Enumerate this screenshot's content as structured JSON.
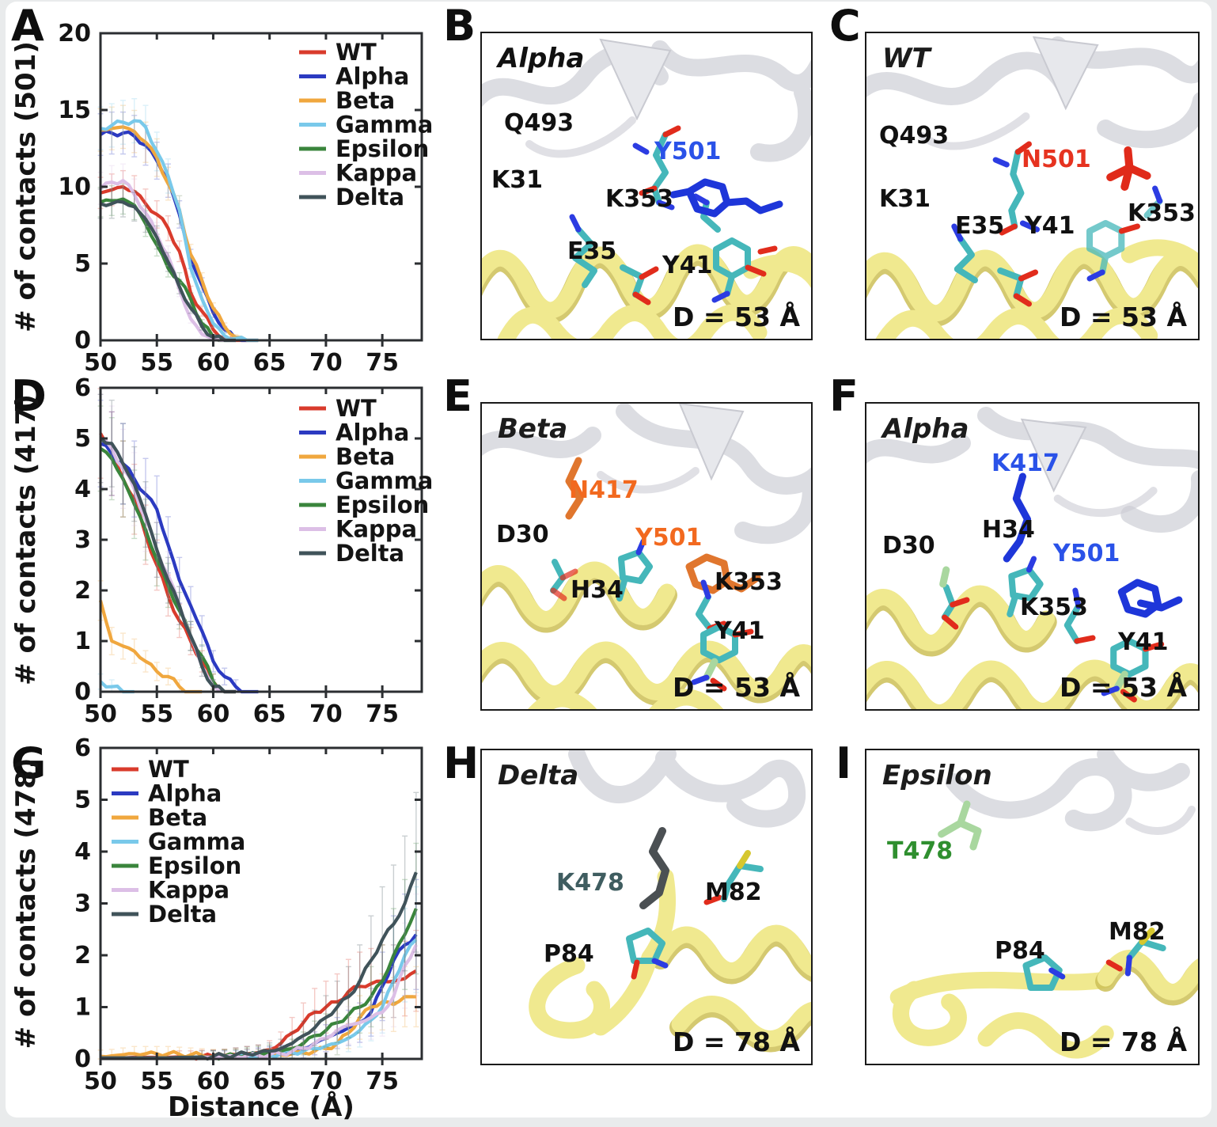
{
  "chart_data": [
    {
      "id": "A",
      "type": "line",
      "panel_letter": "A",
      "ylabel": "# of contacts (501)",
      "xlabel": "",
      "xlim": [
        50,
        78.5
      ],
      "ylim": [
        0,
        20
      ],
      "xticks": [
        50,
        55,
        60,
        65,
        70,
        75
      ],
      "yticks": [
        0,
        5,
        10,
        15,
        20
      ],
      "legend_position": "right",
      "grid": false,
      "truncate": true,
      "err": [
        0.15,
        0.09
      ],
      "jitter": 0.18,
      "x": [
        50,
        51,
        52,
        53,
        54,
        55,
        56,
        57,
        58,
        59,
        60,
        61,
        62,
        63,
        64,
        65,
        66,
        67,
        68,
        69,
        70,
        71,
        72,
        73,
        74,
        75,
        76,
        77,
        78
      ],
      "series": [
        {
          "name": "WT",
          "color": "#d93b2c",
          "values": [
            9.6,
            9.8,
            10,
            9.7,
            8.9,
            8.2,
            7.3,
            5.8,
            3.1,
            1.9,
            0.7,
            0.1,
            0,
            0,
            0,
            0,
            0,
            0,
            0,
            0,
            0,
            0,
            0,
            0,
            0,
            0,
            0,
            0,
            0
          ]
        },
        {
          "name": "Alpha",
          "color": "#2b3ac1",
          "values": [
            13.4,
            13.5,
            13.5,
            13.3,
            12.7,
            11.7,
            10.4,
            8.2,
            5.3,
            3.6,
            1.8,
            0.7,
            0.1,
            0,
            0,
            0,
            0,
            0,
            0,
            0,
            0,
            0,
            0,
            0,
            0,
            0,
            0,
            0,
            0
          ]
        },
        {
          "name": "Beta",
          "color": "#f0a73e",
          "values": [
            13.7,
            13.8,
            13.9,
            13.6,
            12.9,
            11.9,
            10.2,
            8.5,
            5.6,
            3.9,
            2.1,
            0.9,
            0.2,
            0,
            0,
            0,
            0,
            0,
            0,
            0,
            0,
            0,
            0,
            0,
            0,
            0,
            0,
            0,
            0
          ]
        },
        {
          "name": "Gamma",
          "color": "#79c9ea",
          "values": [
            13.8,
            14,
            14.2,
            14.3,
            13.9,
            12.3,
            10.7,
            8.5,
            4.7,
            2.7,
            1.1,
            0.3,
            0.1,
            0,
            0,
            0,
            0,
            0,
            0,
            0,
            0,
            0,
            0,
            0,
            0,
            0,
            0,
            0,
            0
          ]
        },
        {
          "name": "Epsilon",
          "color": "#3a853c",
          "values": [
            9,
            9.1,
            9.2,
            8.8,
            7.6,
            6.2,
            4.7,
            3.9,
            2.7,
            1.1,
            0.2,
            0,
            0,
            0,
            0,
            0,
            0,
            0,
            0,
            0,
            0,
            0,
            0,
            0,
            0,
            0,
            0,
            0,
            0
          ]
        },
        {
          "name": "Kappa",
          "color": "#dcbfe6",
          "values": [
            9.9,
            10.3,
            10.4,
            9.5,
            8.3,
            6.9,
            5.5,
            3.3,
            1.4,
            0.4,
            0.1,
            0,
            0,
            0,
            0,
            0,
            0,
            0,
            0,
            0,
            0,
            0,
            0,
            0,
            0,
            0,
            0,
            0,
            0
          ]
        },
        {
          "name": "Delta",
          "color": "#40535a",
          "values": [
            8.9,
            8.9,
            9,
            8.7,
            7.9,
            6.7,
            5.1,
            3.5,
            2.1,
            0.9,
            0.2,
            0,
            0,
            0,
            0,
            0,
            0,
            0,
            0,
            0,
            0,
            0,
            0,
            0,
            0,
            0,
            0,
            0,
            0
          ]
        }
      ]
    },
    {
      "id": "D",
      "type": "line",
      "panel_letter": "D",
      "ylabel": "# of contacts (417)",
      "xlabel": "",
      "xlim": [
        50,
        78.5
      ],
      "ylim": [
        0,
        6
      ],
      "xticks": [
        50,
        55,
        60,
        65,
        70,
        75
      ],
      "yticks": [
        0,
        1,
        2,
        3,
        4,
        5,
        6
      ],
      "legend_position": "right",
      "grid": false,
      "truncate": true,
      "err": [
        0.12,
        0.15
      ],
      "jitter": 0.06,
      "x": [
        50,
        51,
        52,
        53,
        54,
        55,
        56,
        57,
        58,
        59,
        60,
        61,
        62,
        63,
        64,
        65,
        66,
        67,
        68,
        69,
        70,
        71,
        72,
        73,
        74,
        75,
        76,
        77,
        78
      ],
      "series": [
        {
          "name": "WT",
          "color": "#d93b2c",
          "values": [
            5.1,
            4.7,
            4.2,
            3.8,
            3.1,
            2.5,
            1.9,
            1.4,
            1,
            0.6,
            0.2,
            0,
            0,
            0,
            0,
            0,
            0,
            0,
            0,
            0,
            0,
            0,
            0,
            0,
            0,
            0,
            0,
            0,
            0
          ]
        },
        {
          "name": "Alpha",
          "color": "#2b3ac1",
          "values": [
            4.9,
            4.7,
            4.5,
            4.2,
            3.9,
            3.6,
            2.9,
            2.2,
            1.7,
            1.2,
            0.6,
            0.3,
            0.1,
            0,
            0,
            0,
            0,
            0,
            0,
            0,
            0,
            0,
            0,
            0,
            0,
            0,
            0,
            0,
            0
          ]
        },
        {
          "name": "Beta",
          "color": "#f0a73e",
          "values": [
            1.8,
            1,
            0.9,
            0.8,
            0.6,
            0.4,
            0.3,
            0.1,
            0,
            0,
            0,
            0,
            0,
            0,
            0,
            0,
            0,
            0,
            0,
            0,
            0,
            0,
            0,
            0,
            0,
            0,
            0,
            0,
            0
          ]
        },
        {
          "name": "Gamma",
          "color": "#79c9ea",
          "values": [
            0.2,
            0.1,
            0,
            0,
            0,
            0,
            0,
            0,
            0,
            0,
            0,
            0,
            0,
            0,
            0,
            0,
            0,
            0,
            0,
            0,
            0,
            0,
            0,
            0,
            0,
            0,
            0,
            0,
            0
          ]
        },
        {
          "name": "Epsilon",
          "color": "#3a853c",
          "values": [
            4.8,
            4.6,
            4.2,
            3.7,
            3.2,
            2.6,
            2.1,
            1.6,
            1.1,
            0.7,
            0.2,
            0,
            0,
            0,
            0,
            0,
            0,
            0,
            0,
            0,
            0,
            0,
            0,
            0,
            0,
            0,
            0,
            0,
            0
          ]
        },
        {
          "name": "Kappa",
          "color": "#dcbfe6",
          "values": [
            5,
            4.8,
            4.4,
            4,
            3.4,
            2.8,
            2.3,
            1.7,
            1.1,
            0.5,
            0.1,
            0,
            0,
            0,
            0,
            0,
            0,
            0,
            0,
            0,
            0,
            0,
            0,
            0,
            0,
            0,
            0,
            0,
            0
          ]
        },
        {
          "name": "Delta",
          "color": "#40535a",
          "values": [
            5,
            4.9,
            4.5,
            4.1,
            3.5,
            2.8,
            2.2,
            1.7,
            1.1,
            0.5,
            0.1,
            0,
            0,
            0,
            0,
            0,
            0,
            0,
            0,
            0,
            0,
            0,
            0,
            0,
            0,
            0,
            0,
            0,
            0
          ]
        }
      ]
    },
    {
      "id": "G",
      "type": "line",
      "panel_letter": "G",
      "ylabel": "# of contacts (478)",
      "xlabel": "Distance (Å)",
      "xlim": [
        50,
        78.5
      ],
      "ylim": [
        0,
        6
      ],
      "xticks": [
        50,
        55,
        60,
        65,
        70,
        75
      ],
      "yticks": [
        0,
        1,
        2,
        3,
        4,
        5,
        6
      ],
      "legend_position": "left",
      "grid": false,
      "truncate": false,
      "err": [
        0.1,
        0.4
      ],
      "jitter": 0.05,
      "x": [
        50,
        51,
        52,
        53,
        54,
        55,
        56,
        57,
        58,
        59,
        60,
        61,
        62,
        63,
        64,
        65,
        66,
        67,
        68,
        69,
        70,
        71,
        72,
        73,
        74,
        75,
        76,
        77,
        78
      ],
      "series": [
        {
          "name": "WT",
          "color": "#d93b2c",
          "values": [
            0.02,
            0.02,
            0.02,
            0.03,
            0.03,
            0.03,
            0.03,
            0.04,
            0.04,
            0.05,
            0.05,
            0.06,
            0.08,
            0.1,
            0.12,
            0.18,
            0.3,
            0.5,
            0.7,
            0.9,
            1,
            1.1,
            1.3,
            1.4,
            1.45,
            1.5,
            1.5,
            1.55,
            1.7
          ]
        },
        {
          "name": "Alpha",
          "color": "#2b3ac1",
          "values": [
            0.02,
            0.02,
            0.02,
            0.02,
            0.02,
            0.02,
            0.02,
            0.02,
            0.03,
            0.03,
            0.04,
            0.04,
            0.05,
            0.06,
            0.08,
            0.1,
            0.12,
            0.15,
            0.2,
            0.3,
            0.4,
            0.5,
            0.6,
            0.7,
            0.9,
            1.4,
            1.9,
            2.2,
            2.4
          ]
        },
        {
          "name": "Beta",
          "color": "#f0a73e",
          "values": [
            0.05,
            0.06,
            0.08,
            0.1,
            0.1,
            0.1,
            0.1,
            0.09,
            0.08,
            0.07,
            0.06,
            0.06,
            0.06,
            0.06,
            0.06,
            0.07,
            0.08,
            0.1,
            0.12,
            0.15,
            0.2,
            0.3,
            0.5,
            0.8,
            1,
            1.1,
            1.05,
            1.2,
            1.2
          ]
        },
        {
          "name": "Gamma",
          "color": "#79c9ea",
          "values": [
            0.02,
            0.02,
            0.02,
            0.02,
            0.02,
            0.02,
            0.02,
            0.02,
            0.02,
            0.03,
            0.03,
            0.03,
            0.04,
            0.05,
            0.06,
            0.08,
            0.1,
            0.12,
            0.15,
            0.2,
            0.25,
            0.3,
            0.4,
            0.55,
            0.75,
            1,
            1.5,
            2,
            2.3
          ]
        },
        {
          "name": "Epsilon",
          "color": "#3a853c",
          "values": [
            0.02,
            0.02,
            0.02,
            0.02,
            0.02,
            0.02,
            0.02,
            0.02,
            0.03,
            0.03,
            0.04,
            0.05,
            0.06,
            0.08,
            0.1,
            0.12,
            0.15,
            0.2,
            0.3,
            0.45,
            0.55,
            0.7,
            0.85,
            1,
            1.2,
            1.5,
            2,
            2.4,
            2.9
          ]
        },
        {
          "name": "Kappa",
          "color": "#dcbfe6",
          "values": [
            0.02,
            0.02,
            0.02,
            0.02,
            0.02,
            0.02,
            0.02,
            0.02,
            0.02,
            0.03,
            0.03,
            0.04,
            0.05,
            0.06,
            0.07,
            0.08,
            0.1,
            0.15,
            0.2,
            0.3,
            0.4,
            0.55,
            0.65,
            0.7,
            0.8,
            0.9,
            1.2,
            1.8,
            2.2
          ]
        },
        {
          "name": "Delta",
          "color": "#40535a",
          "values": [
            0.02,
            0.02,
            0.02,
            0.02,
            0.02,
            0.02,
            0.02,
            0.03,
            0.03,
            0.04,
            0.05,
            0.06,
            0.08,
            0.1,
            0.12,
            0.15,
            0.2,
            0.3,
            0.45,
            0.6,
            0.8,
            1,
            1.2,
            1.5,
            1.9,
            2.3,
            2.6,
            3,
            3.6
          ]
        }
      ]
    }
  ],
  "panels": [
    {
      "letter": "B",
      "variant": "Alpha",
      "distance": "D = 53 Å",
      "residues": [
        {
          "text": "Q493",
          "color": "#111111"
        },
        {
          "text": "K31",
          "color": "#111111"
        },
        {
          "text": "Y501",
          "color": "#2a52e8"
        },
        {
          "text": "K353",
          "color": "#111111"
        },
        {
          "text": "E35",
          "color": "#111111"
        },
        {
          "text": "Y41",
          "color": "#111111"
        }
      ]
    },
    {
      "letter": "C",
      "variant": "WT",
      "distance": "D = 53 Å",
      "residues": [
        {
          "text": "Q493",
          "color": "#111111"
        },
        {
          "text": "N501",
          "color": "#e63320"
        },
        {
          "text": "K31",
          "color": "#111111"
        },
        {
          "text": "E35",
          "color": "#111111"
        },
        {
          "text": "Y41",
          "color": "#111111"
        },
        {
          "text": "K353",
          "color": "#111111"
        }
      ]
    },
    {
      "letter": "E",
      "variant": "Beta",
      "distance": "D = 53 Å",
      "residues": [
        {
          "text": "N417",
          "color": "#f2691f"
        },
        {
          "text": "D30",
          "color": "#111111"
        },
        {
          "text": "Y501",
          "color": "#f2691f"
        },
        {
          "text": "H34",
          "color": "#111111"
        },
        {
          "text": "K353",
          "color": "#111111"
        },
        {
          "text": "Y41",
          "color": "#111111"
        }
      ]
    },
    {
      "letter": "F",
      "variant": "Alpha",
      "distance": "D = 53 Å",
      "residues": [
        {
          "text": "K417",
          "color": "#2a52e8"
        },
        {
          "text": "H34",
          "color": "#111111"
        },
        {
          "text": "D30",
          "color": "#111111"
        },
        {
          "text": "Y501",
          "color": "#2a52e8"
        },
        {
          "text": "K353",
          "color": "#111111"
        },
        {
          "text": "Y41",
          "color": "#111111"
        }
      ]
    },
    {
      "letter": "H",
      "variant": "Delta",
      "distance": "D = 78 Å",
      "residues": [
        {
          "text": "K478",
          "color": "#3f5d60"
        },
        {
          "text": "M82",
          "color": "#111111"
        },
        {
          "text": "P84",
          "color": "#111111"
        }
      ]
    },
    {
      "letter": "I",
      "variant": "Epsilon",
      "distance": "D = 78 Å",
      "residues": [
        {
          "text": "T478",
          "color": "#2f8f2f"
        },
        {
          "text": "P84",
          "color": "#111111"
        },
        {
          "text": "M82",
          "color": "#111111"
        }
      ]
    }
  ]
}
